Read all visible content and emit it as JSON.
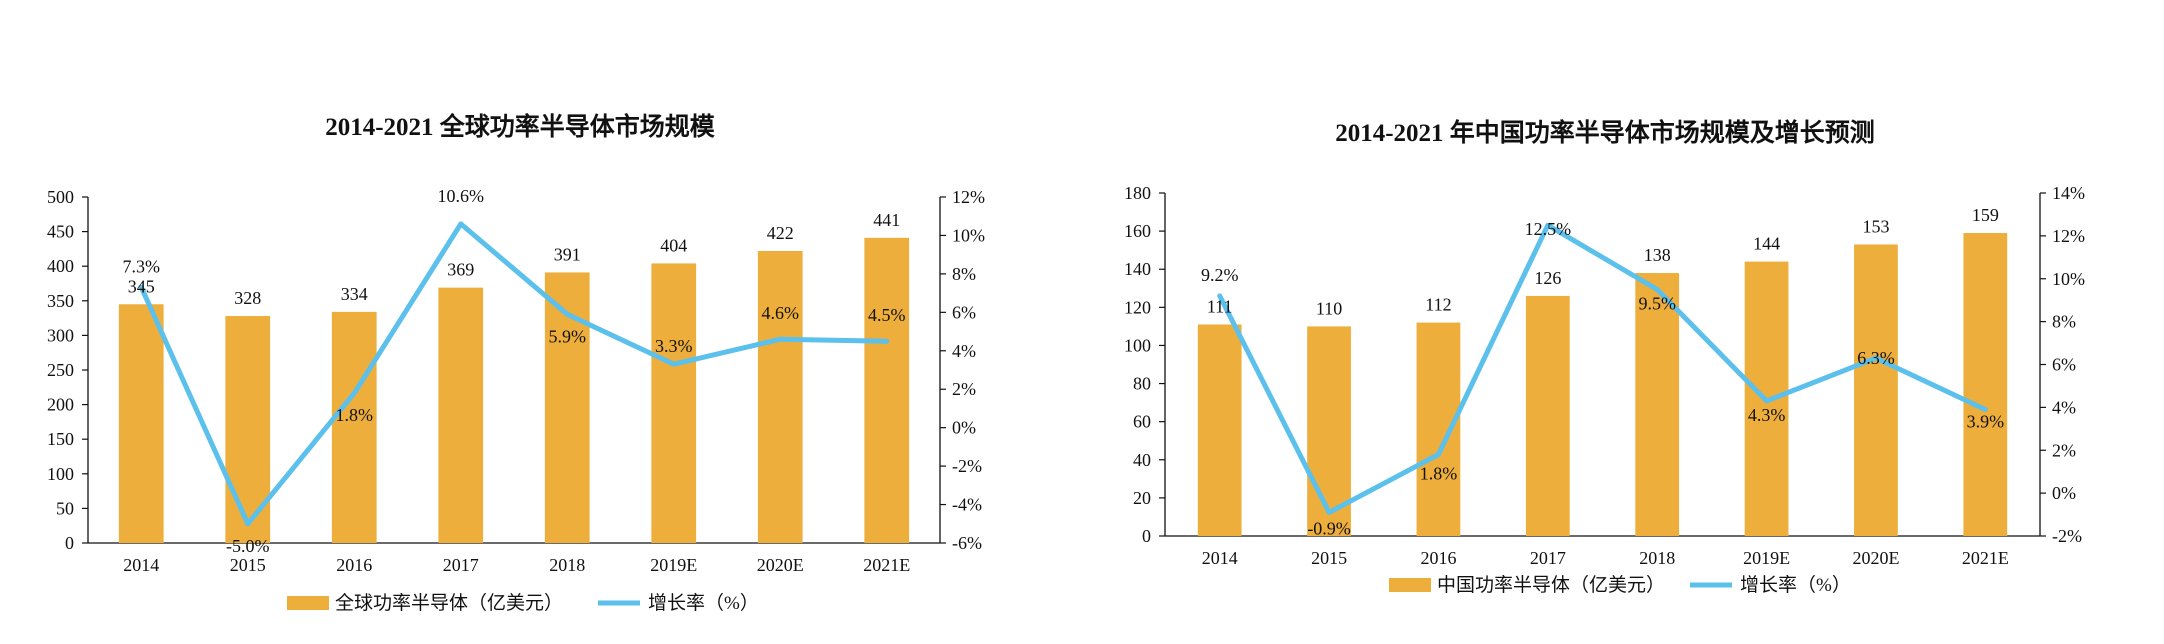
{
  "colors": {
    "bar": "#EEAE3B",
    "line": "#5BC0EB",
    "axis": "#111111"
  },
  "chart_data": [
    {
      "type": "bar",
      "title": "2014-2021 全球功率半导体市场规模",
      "categories": [
        "2014",
        "2015",
        "2016",
        "2017",
        "2018",
        "2019E",
        "2020E",
        "2021E"
      ],
      "series": [
        {
          "name": "全球功率半导体（亿美元）",
          "type": "bar",
          "axis": "left",
          "values": [
            345,
            328,
            334,
            369,
            391,
            404,
            422,
            441
          ]
        },
        {
          "name": "增长率（%）",
          "type": "line",
          "axis": "right",
          "values": [
            7.3,
            -5.0,
            1.8,
            10.6,
            5.9,
            3.3,
            4.6,
            4.5
          ]
        }
      ],
      "bar_labels": [
        "345",
        "328",
        "334",
        "369",
        "391",
        "404",
        "422",
        "441"
      ],
      "line_labels": [
        "7.3%",
        "-5.0%",
        "1.8%",
        "10.6%",
        "5.9%",
        "3.3%",
        "4.6%",
        "4.5%"
      ],
      "ylim": [
        0,
        500
      ],
      "yticks": [
        "0",
        "50",
        "100",
        "150",
        "200",
        "250",
        "300",
        "350",
        "400",
        "450",
        "500"
      ],
      "y2lim": [
        -6,
        12
      ],
      "y2ticks": [
        "-6%",
        "-4%",
        "-2%",
        "0%",
        "2%",
        "4%",
        "6%",
        "8%",
        "10%",
        "12%"
      ],
      "legend": [
        "全球功率半导体（亿美元）",
        "增长率（%）"
      ],
      "legend_position": "bottom",
      "grid": false
    },
    {
      "type": "bar",
      "title": "2014-2021 年中国功率半导体市场规模及增长预测",
      "categories": [
        "2014",
        "2015",
        "2016",
        "2017",
        "2018",
        "2019E",
        "2020E",
        "2021E"
      ],
      "series": [
        {
          "name": "中国功率半导体（亿美元）",
          "type": "bar",
          "axis": "left",
          "values": [
            111,
            110,
            112,
            126,
            138,
            144,
            153,
            159
          ]
        },
        {
          "name": "增长率（%）",
          "type": "line",
          "axis": "right",
          "values": [
            9.2,
            -0.9,
            1.8,
            12.5,
            9.5,
            4.3,
            6.3,
            3.9
          ]
        }
      ],
      "bar_labels": [
        "111",
        "110",
        "112",
        "126",
        "138",
        "144",
        "153",
        "159"
      ],
      "line_labels": [
        "9.2%",
        "-0.9%",
        "1.8%",
        "12.5%",
        "9.5%",
        "4.3%",
        "6.3%",
        "3.9%"
      ],
      "ylim": [
        0,
        180
      ],
      "yticks": [
        "0",
        "20",
        "40",
        "60",
        "80",
        "100",
        "120",
        "140",
        "160",
        "180"
      ],
      "y2lim": [
        -2,
        14
      ],
      "y2ticks": [
        "-2%",
        "0%",
        "2%",
        "4%",
        "6%",
        "8%",
        "10%",
        "12%",
        "14%"
      ],
      "legend": [
        "中国功率半导体（亿美元）",
        "增长率（%）"
      ],
      "legend_position": "bottom",
      "grid": false
    }
  ]
}
